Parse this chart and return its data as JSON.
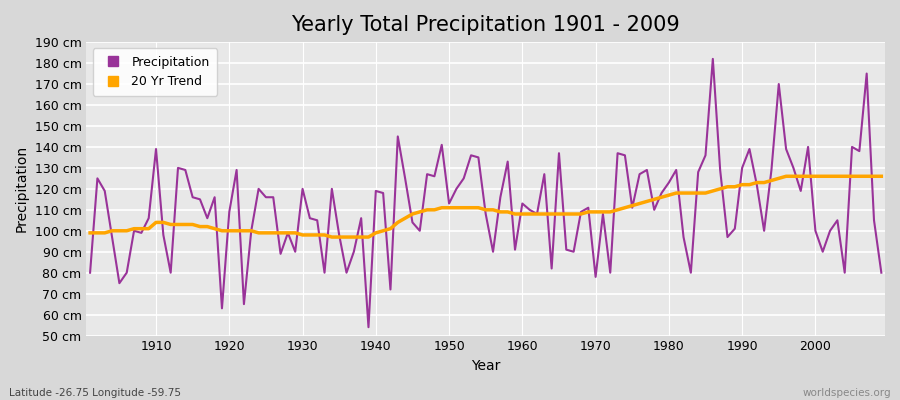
{
  "title": "Yearly Total Precipitation 1901 - 2009",
  "xlabel": "Year",
  "ylabel": "Precipitation",
  "subtitle_lat": "Latitude -26.75 Longitude -59.75",
  "watermark": "worldspecies.org",
  "years": [
    1901,
    1902,
    1903,
    1904,
    1905,
    1906,
    1907,
    1908,
    1909,
    1910,
    1911,
    1912,
    1913,
    1914,
    1915,
    1916,
    1917,
    1918,
    1919,
    1920,
    1921,
    1922,
    1923,
    1924,
    1925,
    1926,
    1927,
    1928,
    1929,
    1930,
    1931,
    1932,
    1933,
    1934,
    1935,
    1936,
    1937,
    1938,
    1939,
    1940,
    1941,
    1942,
    1943,
    1944,
    1945,
    1946,
    1947,
    1948,
    1949,
    1950,
    1951,
    1952,
    1953,
    1954,
    1955,
    1956,
    1957,
    1958,
    1959,
    1960,
    1961,
    1962,
    1963,
    1964,
    1965,
    1966,
    1967,
    1968,
    1969,
    1970,
    1971,
    1972,
    1973,
    1974,
    1975,
    1976,
    1977,
    1978,
    1979,
    1980,
    1981,
    1982,
    1983,
    1984,
    1985,
    1986,
    1987,
    1988,
    1989,
    1990,
    1991,
    1992,
    1993,
    1994,
    1995,
    1996,
    1997,
    1998,
    1999,
    2000,
    2001,
    2002,
    2003,
    2004,
    2005,
    2006,
    2007,
    2008,
    2009
  ],
  "precipitation": [
    80,
    125,
    119,
    97,
    75,
    80,
    100,
    99,
    106,
    139,
    98,
    80,
    130,
    129,
    116,
    115,
    106,
    116,
    63,
    109,
    129,
    65,
    100,
    120,
    116,
    116,
    89,
    99,
    90,
    120,
    106,
    105,
    80,
    120,
    98,
    80,
    90,
    106,
    54,
    119,
    118,
    72,
    145,
    125,
    104,
    100,
    127,
    126,
    141,
    113,
    120,
    125,
    136,
    135,
    108,
    90,
    116,
    133,
    91,
    113,
    110,
    108,
    127,
    82,
    137,
    91,
    90,
    109,
    111,
    78,
    108,
    80,
    137,
    136,
    111,
    127,
    129,
    110,
    118,
    123,
    129,
    97,
    80,
    128,
    136,
    182,
    129,
    97,
    101,
    130,
    139,
    122,
    100,
    129,
    170,
    139,
    130,
    119,
    140,
    100,
    90,
    100,
    105,
    80,
    140,
    138,
    175,
    105,
    80
  ],
  "trend": [
    99,
    99,
    99,
    100,
    100,
    100,
    101,
    101,
    101,
    104,
    104,
    103,
    103,
    103,
    103,
    102,
    102,
    101,
    100,
    100,
    100,
    100,
    100,
    99,
    99,
    99,
    99,
    99,
    99,
    98,
    98,
    98,
    98,
    97,
    97,
    97,
    97,
    97,
    97,
    99,
    100,
    101,
    104,
    106,
    108,
    109,
    110,
    110,
    111,
    111,
    111,
    111,
    111,
    111,
    110,
    110,
    109,
    109,
    108,
    108,
    108,
    108,
    108,
    108,
    108,
    108,
    108,
    108,
    109,
    109,
    109,
    109,
    110,
    111,
    112,
    113,
    114,
    115,
    116,
    117,
    118,
    118,
    118,
    118,
    118,
    119,
    120,
    121,
    121,
    122,
    122,
    123,
    123,
    124,
    125,
    126,
    126,
    126,
    126,
    126,
    126,
    126,
    126,
    126,
    126,
    126,
    126,
    126,
    126
  ],
  "precip_color": "#993399",
  "trend_color": "#FFA500",
  "fig_bg_color": "#D8D8D8",
  "plot_bg_color": "#E8E8E8",
  "grid_color": "#FFFFFF",
  "ylim": [
    50,
    190
  ],
  "yticks": [
    50,
    60,
    70,
    80,
    90,
    100,
    110,
    120,
    130,
    140,
    150,
    160,
    170,
    180,
    190
  ],
  "xticks": [
    1910,
    1920,
    1930,
    1940,
    1950,
    1960,
    1970,
    1980,
    1990,
    2000
  ],
  "title_fontsize": 15,
  "label_fontsize": 10,
  "tick_fontsize": 9,
  "legend_fontsize": 9
}
